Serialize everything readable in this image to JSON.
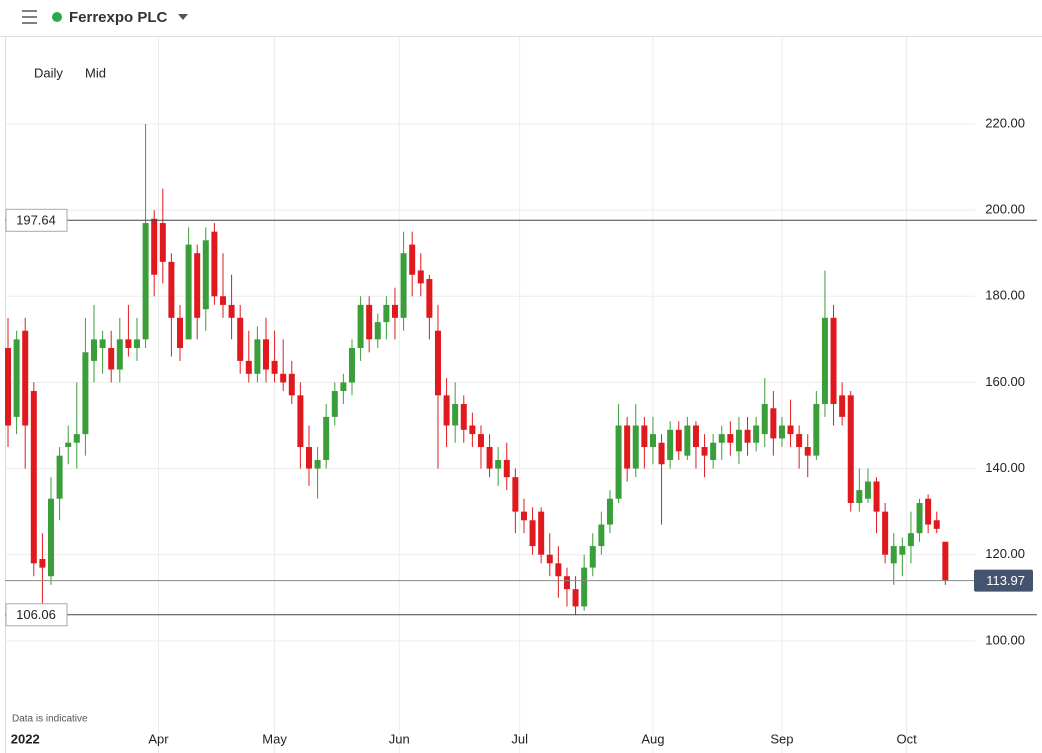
{
  "chart_data": {
    "type": "candlestick",
    "title": "Ferrexpo PLC",
    "interval": "Daily",
    "price_type": "Mid",
    "note": "Data is indicative",
    "up_color": "#3a9e3a",
    "down_color": "#e0191e",
    "grid": true,
    "xlim": [
      -0.35,
      112.45
    ],
    "xticks": [
      {
        "value": 2.3,
        "label": "2022"
      },
      {
        "value": 17.5,
        "label": "Apr"
      },
      {
        "value": 31,
        "label": "May"
      },
      {
        "value": 45.5,
        "label": "Jun"
      },
      {
        "value": 59.5,
        "label": "Jul"
      },
      {
        "value": 75,
        "label": "Aug"
      },
      {
        "value": 90,
        "label": "Sep"
      },
      {
        "value": 104.5,
        "label": "Oct"
      }
    ],
    "ylim": [
      79.3,
      240.2
    ],
    "yticks": [
      {
        "value": 100,
        "label": "100.00"
      },
      {
        "value": 120,
        "label": "120.00"
      },
      {
        "value": 140,
        "label": "140.00"
      },
      {
        "value": 160,
        "label": "160.00"
      },
      {
        "value": 180,
        "label": "180.00"
      },
      {
        "value": 200,
        "label": "200.00"
      },
      {
        "value": 220,
        "label": "220.00"
      }
    ],
    "reference_lines": [
      197.64,
      106.06
    ],
    "last_price": 113.97,
    "open": [
      168,
      152,
      172,
      158,
      119,
      115,
      133,
      145,
      146,
      148,
      165,
      168,
      168,
      163,
      170,
      168,
      170,
      198,
      197,
      188,
      175,
      170,
      190,
      177,
      195,
      180,
      178,
      175,
      165,
      162,
      170,
      165,
      162,
      162,
      157,
      145,
      140,
      142,
      152,
      158,
      160,
      168,
      178,
      170,
      174,
      178,
      175,
      192,
      186,
      184,
      172,
      157,
      150,
      155,
      150,
      148,
      145,
      140,
      142,
      138,
      130,
      128,
      130,
      120,
      118,
      115,
      112,
      108,
      117,
      122,
      127,
      133,
      150,
      140,
      150,
      145,
      146,
      142,
      149,
      143,
      150,
      145,
      142,
      146,
      148,
      144,
      149,
      146,
      148,
      154,
      147,
      150,
      148,
      145,
      143,
      155,
      175,
      157,
      157,
      132,
      133,
      137,
      130,
      118,
      120,
      122,
      125,
      133,
      128,
      123
    ],
    "high": [
      175,
      172,
      175,
      160,
      125,
      138,
      145,
      150,
      160,
      175,
      178,
      172,
      172,
      175,
      178,
      175,
      220,
      200,
      205,
      190,
      178,
      196,
      192,
      196,
      197,
      190,
      185,
      178,
      172,
      173,
      175,
      172,
      170,
      165,
      160,
      150,
      145,
      155,
      160,
      162,
      170,
      180,
      180,
      176,
      180,
      182,
      195,
      195,
      190,
      185,
      178,
      161,
      160,
      157,
      153,
      150,
      148,
      145,
      146,
      140,
      133,
      131,
      131,
      125,
      122,
      117,
      115,
      120,
      125,
      130,
      135,
      155,
      152,
      155,
      152,
      152,
      148,
      151,
      151,
      152,
      151,
      148,
      148,
      150,
      151,
      152,
      152,
      152,
      161,
      158,
      152,
      156,
      150,
      148,
      158,
      186,
      178,
      160,
      158,
      140,
      140,
      138,
      132,
      125,
      124,
      130,
      133,
      134,
      130,
      123
    ],
    "low": [
      145,
      148,
      140,
      115,
      108,
      113,
      128,
      141,
      140,
      143,
      160,
      162,
      160,
      160,
      166,
      165,
      168,
      180,
      183,
      166,
      165,
      170,
      170,
      172,
      178,
      175,
      170,
      162,
      160,
      160,
      160,
      160,
      158,
      155,
      140,
      136,
      133,
      140,
      150,
      155,
      157,
      165,
      167,
      168,
      170,
      170,
      172,
      180,
      180,
      170,
      140,
      145,
      146,
      146,
      145,
      140,
      138,
      136,
      135,
      125,
      125,
      120,
      118,
      115,
      110,
      108,
      106,
      107,
      115,
      120,
      125,
      132,
      137,
      138,
      140,
      141,
      127,
      140,
      142,
      142,
      140,
      138,
      140,
      142,
      143,
      141,
      143,
      144,
      145,
      143,
      145,
      145,
      140,
      138,
      142,
      152,
      150,
      150,
      130,
      130,
      132,
      125,
      118,
      113,
      115,
      118,
      123,
      125,
      125,
      113
    ],
    "close": [
      150,
      170,
      150,
      118,
      117,
      133,
      143,
      146,
      148,
      167,
      170,
      170,
      163,
      170,
      168,
      170,
      197,
      185,
      188,
      175,
      168,
      192,
      175,
      193,
      180,
      178,
      175,
      165,
      162,
      170,
      163,
      162,
      160,
      157,
      145,
      140,
      142,
      152,
      158,
      160,
      168,
      178,
      170,
      174,
      178,
      175,
      190,
      185,
      183,
      175,
      157,
      150,
      155,
      149,
      148,
      145,
      140,
      142,
      138,
      130,
      128,
      122,
      120,
      118,
      115,
      112,
      108,
      117,
      122,
      127,
      133,
      150,
      140,
      150,
      145,
      148,
      141,
      149,
      144,
      150,
      145,
      143,
      146,
      148,
      146,
      149,
      146,
      150,
      155,
      147,
      150,
      148,
      145,
      143,
      155,
      175,
      155,
      152,
      132,
      135,
      137,
      130,
      120,
      122,
      122,
      125,
      132,
      127,
      126,
      114
    ]
  }
}
